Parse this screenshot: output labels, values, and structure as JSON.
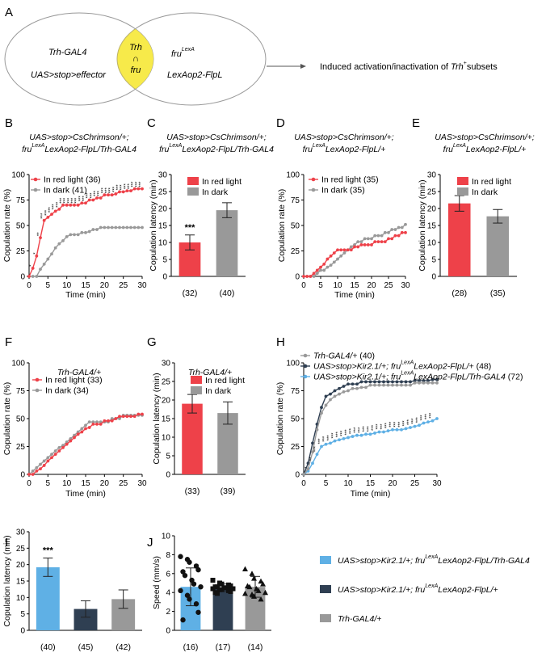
{
  "colors": {
    "red": "#ee4149",
    "grey": "#999999",
    "dark": "#2f3f52",
    "blue": "#5fb0e5",
    "venn_yellow": "#f7ea4a",
    "black": "#222222"
  },
  "panelA": {
    "label": "A",
    "left_l1": "Trh-GAL4",
    "left_l2": "UAS>stop>effector",
    "mid_top": "Trh",
    "mid_sym": "∩",
    "mid_bot": "fru",
    "right_base": "fru",
    "right_sup": "LexA",
    "right_l2": "LexAop2-FlpL",
    "arrow_text_pre": "Induced activation/inactivation of ",
    "arrow_text_gene": "Trh",
    "arrow_text_sup": "+",
    "arrow_text_post": "subsets"
  },
  "chart_data": [
    {
      "id": "B",
      "type": "line",
      "label": "B",
      "title1": "UAS>stop>CsChrimson/+;",
      "title2_pre": "fru",
      "title2_sup": "LexA",
      "title2_post": "LexAop2-FlpL/Trh-GAL4",
      "xlabel": "Time (min)",
      "ylabel": "Copulation rate (%)",
      "xlim": [
        0,
        30
      ],
      "ylim": [
        0,
        100
      ],
      "xticks": [
        0,
        5,
        10,
        15,
        20,
        25,
        30
      ],
      "yticks": [
        0,
        25,
        50,
        75,
        100
      ],
      "x": [
        0,
        1,
        2,
        3,
        4,
        5,
        6,
        7,
        8,
        9,
        10,
        11,
        12,
        13,
        14,
        15,
        16,
        17,
        18,
        19,
        20,
        21,
        22,
        23,
        24,
        25,
        26,
        27,
        28,
        29,
        30
      ],
      "series": [
        {
          "name": "In red light",
          "n": "(36)",
          "color": "red",
          "values": [
            0,
            8,
            20,
            38,
            55,
            58,
            61,
            64,
            66,
            70,
            70,
            70,
            70,
            70,
            72,
            72,
            75,
            75,
            77,
            77,
            80,
            80,
            80,
            81,
            83,
            83,
            84,
            84,
            86,
            86,
            86
          ]
        },
        {
          "name": "In dark",
          "n": "(41)",
          "color": "grey",
          "values": [
            0,
            0,
            0,
            7,
            12,
            17,
            22,
            28,
            32,
            35,
            39,
            41,
            41,
            41,
            43,
            43,
            44,
            46,
            46,
            48,
            48,
            48,
            48,
            48,
            48,
            48,
            48,
            48,
            48,
            48,
            48
          ]
        }
      ],
      "sig_marks": [
        "*",
        "*",
        "**",
        "***",
        "***",
        "***",
        "***",
        "***",
        "***",
        "***",
        "***",
        "***",
        "***",
        "***",
        "***",
        "***",
        "***",
        "***",
        "***",
        "***",
        "***",
        "***",
        "***",
        "***",
        "***",
        "***",
        "***",
        "***",
        "***",
        "***"
      ]
    },
    {
      "id": "C",
      "type": "bar",
      "label": "C",
      "title1": "UAS>stop>CsChrimson/+;",
      "title2_pre": "fru",
      "title2_sup": "LexA",
      "title2_post": "LexAop2-FlpL/Trh-GAL4",
      "ylabel": "Copulation latency (min)",
      "ylim": [
        0,
        30
      ],
      "yticks": [
        0,
        5,
        10,
        15,
        20,
        25,
        30
      ],
      "legend": [
        "In red light",
        "In dark"
      ],
      "categories": [
        "In red light",
        "In dark"
      ],
      "values": [
        10,
        19.5
      ],
      "errors": [
        2.2,
        2.2
      ],
      "colors": [
        "red",
        "grey"
      ],
      "n_labels": [
        "(32)",
        "(40)"
      ],
      "annotations": [
        "***",
        ""
      ]
    },
    {
      "id": "D",
      "type": "line",
      "label": "D",
      "title1": "UAS>stop>CsChrimson/+;",
      "title2_pre": "fru",
      "title2_sup": "LexA",
      "title2_post": "LexAop2-FlpL/+",
      "xlabel": "Time (min)",
      "ylabel": "Copulation rate (%)",
      "xlim": [
        0,
        30
      ],
      "ylim": [
        0,
        100
      ],
      "xticks": [
        0,
        5,
        10,
        15,
        20,
        25,
        30
      ],
      "yticks": [
        0,
        25,
        50,
        75,
        100
      ],
      "x": [
        0,
        1,
        2,
        3,
        4,
        5,
        6,
        7,
        8,
        9,
        10,
        11,
        12,
        13,
        14,
        15,
        16,
        17,
        18,
        19,
        20,
        21,
        22,
        23,
        24,
        25,
        26,
        27,
        28,
        29,
        30
      ],
      "series": [
        {
          "name": "In red light",
          "n": "(35)",
          "color": "red",
          "values": [
            0,
            0,
            0,
            3,
            6,
            9,
            12,
            17,
            20,
            23,
            26,
            26,
            26,
            26,
            26,
            29,
            29,
            31,
            31,
            31,
            31,
            34,
            34,
            34,
            34,
            37,
            37,
            40,
            40,
            43,
            43
          ]
        },
        {
          "name": "In dark",
          "n": "(35)",
          "color": "grey",
          "values": [
            0,
            0,
            0,
            0,
            3,
            6,
            6,
            9,
            11,
            14,
            17,
            20,
            23,
            26,
            29,
            31,
            34,
            34,
            37,
            37,
            37,
            40,
            40,
            40,
            43,
            43,
            46,
            46,
            48,
            48,
            51
          ]
        }
      ],
      "sig_marks": []
    },
    {
      "id": "E",
      "type": "bar",
      "label": "E",
      "title1": "UAS>stop>CsChrimson/+;",
      "title2_pre": "fru",
      "title2_sup": "LexA",
      "title2_post": "LexAop2-FlpL/+",
      "ylabel": "Copulation latency (min)",
      "ylim": [
        0,
        30
      ],
      "yticks": [
        0,
        5,
        10,
        15,
        20,
        25,
        30
      ],
      "legend": [
        "In red light",
        "In dark"
      ],
      "categories": [
        "In red light",
        "In dark"
      ],
      "values": [
        21.5,
        17.7
      ],
      "errors": [
        2.3,
        2.0
      ],
      "colors": [
        "red",
        "grey"
      ],
      "n_labels": [
        "(28)",
        "(35)"
      ],
      "annotations": [
        "",
        ""
      ]
    },
    {
      "id": "F",
      "type": "line",
      "label": "F",
      "title1": "Trh-GAL4/+",
      "xlabel": "Time (min)",
      "ylabel": "Copulation rate (%)",
      "xlim": [
        0,
        30
      ],
      "ylim": [
        0,
        100
      ],
      "xticks": [
        0,
        5,
        10,
        15,
        20,
        25,
        30
      ],
      "yticks": [
        0,
        25,
        50,
        75,
        100
      ],
      "x": [
        0,
        1,
        2,
        3,
        4,
        5,
        6,
        7,
        8,
        9,
        10,
        11,
        12,
        13,
        14,
        15,
        16,
        17,
        18,
        19,
        20,
        21,
        22,
        23,
        24,
        25,
        26,
        27,
        28,
        29,
        30
      ],
      "series": [
        {
          "name": "In red light",
          "n": "(33)",
          "color": "red",
          "values": [
            0,
            0,
            3,
            5,
            8,
            12,
            15,
            18,
            21,
            24,
            27,
            30,
            33,
            36,
            38,
            41,
            42,
            45,
            45,
            45,
            48,
            48,
            48,
            50,
            52,
            52,
            52,
            52,
            52,
            54,
            54
          ]
        },
        {
          "name": "In dark",
          "n": "(34)",
          "color": "grey",
          "values": [
            0,
            3,
            6,
            9,
            12,
            15,
            18,
            21,
            24,
            26,
            29,
            32,
            35,
            38,
            41,
            44,
            47,
            47,
            47,
            47,
            47,
            47,
            50,
            50,
            50,
            53,
            53,
            53,
            53,
            53,
            53
          ]
        }
      ],
      "sig_marks": []
    },
    {
      "id": "G",
      "type": "bar",
      "label": "G",
      "title1": "Trh-GAL4/+",
      "ylabel": "Copulation latency (min)",
      "ylim": [
        0,
        30
      ],
      "yticks": [
        0,
        5,
        10,
        15,
        20,
        25,
        30
      ],
      "legend": [
        "In red light",
        "In dark"
      ],
      "categories": [
        "In red light",
        "In dark"
      ],
      "values": [
        19,
        16.5
      ],
      "errors": [
        2.5,
        3.0
      ],
      "colors": [
        "red",
        "grey"
      ],
      "n_labels": [
        "(33)",
        "(39)"
      ],
      "annotations": [
        "",
        ""
      ]
    },
    {
      "id": "H",
      "type": "line",
      "label": "H",
      "xlabel": "Time (min)",
      "ylabel": "Copulation rate (%)",
      "xlim": [
        0,
        30
      ],
      "ylim": [
        0,
        100
      ],
      "xticks": [
        0,
        5,
        10,
        15,
        20,
        25,
        30
      ],
      "yticks": [
        0,
        25,
        50,
        75,
        100
      ],
      "x": [
        0,
        1,
        2,
        3,
        4,
        5,
        6,
        7,
        8,
        9,
        10,
        11,
        12,
        13,
        14,
        15,
        16,
        17,
        18,
        19,
        20,
        21,
        22,
        23,
        24,
        25,
        26,
        27,
        28,
        29,
        30
      ],
      "series": [
        {
          "name": "Trh-GAL4/+",
          "n": "(40)",
          "color": "grey",
          "values": [
            0,
            5,
            20,
            40,
            55,
            62,
            67,
            70,
            72,
            74,
            75,
            77,
            77,
            78,
            78,
            80,
            80,
            80,
            80,
            80,
            80,
            80,
            80,
            80,
            80,
            82,
            82,
            82,
            82,
            82,
            82
          ]
        },
        {
          "name": "UAS>stop>Kir2.1/+; fru^LexA LexAop2-FlpL/+",
          "n": "(48)",
          "color": "dark",
          "values": [
            0,
            10,
            28,
            45,
            60,
            70,
            72,
            75,
            77,
            79,
            81,
            81,
            81,
            83,
            83,
            83,
            83,
            83,
            83,
            83,
            83,
            83,
            83,
            83,
            83,
            84,
            84,
            84,
            84,
            85,
            85
          ]
        },
        {
          "name": "UAS>stop>Kir2.1/+; fru^LexA LexAop2-FlpL/Trh-GAL4",
          "n": "(72)",
          "color": "blue",
          "values": [
            0,
            3,
            10,
            18,
            25,
            27,
            28,
            30,
            31,
            32,
            33,
            34,
            35,
            35,
            36,
            36,
            37,
            38,
            38,
            39,
            40,
            40,
            40,
            41,
            42,
            43,
            44,
            46,
            47,
            48,
            50
          ]
        }
      ],
      "sig_marks": [
        "*",
        "**",
        "***",
        "***",
        "***",
        "***",
        "***",
        "***",
        "***",
        "***",
        "***",
        "***",
        "***",
        "***",
        "***",
        "***",
        "***",
        "***",
        "***",
        "***",
        "***",
        "***",
        "***",
        "***",
        "***",
        "***",
        "***",
        "***",
        "***"
      ]
    },
    {
      "id": "I",
      "type": "bar",
      "label": "I",
      "ylabel": "Copulation latency (min)",
      "ylim": [
        0,
        30
      ],
      "yticks": [
        0,
        5,
        10,
        15,
        20,
        25,
        30
      ],
      "categories": [
        "UAS>stop>Kir2.1/+; fru^LexA LexAop2-FlpL/Trh-GAL4",
        "UAS>stop>Kir2.1/+; fru^LexA LexAop2-FlpL/+",
        "Trh-GAL4/+"
      ],
      "values": [
        19.2,
        6.5,
        9.5
      ],
      "errors": [
        2.8,
        2.5,
        2.8
      ],
      "colors": [
        "blue",
        "dark",
        "grey"
      ],
      "n_labels": [
        "(40)",
        "(45)",
        "(42)"
      ],
      "annotations": [
        "***",
        "",
        ""
      ]
    },
    {
      "id": "J",
      "type": "bar",
      "label": "J",
      "ylabel": "Speed (mm/s)",
      "ylim": [
        0,
        10
      ],
      "yticks": [
        0,
        2,
        4,
        6,
        8,
        10
      ],
      "categories": [
        "UAS>stop>Kir2.1/+; fru^LexA LexAop2-FlpL/Trh-GAL4",
        "UAS>stop>Kir2.1/+; fru^LexA LexAop2-FlpL/+",
        "Trh-GAL4/+"
      ],
      "values": [
        4.6,
        4.5,
        4.6
      ],
      "errors": [
        2.0,
        0.4,
        1.1
      ],
      "colors": [
        "blue",
        "dark",
        "grey"
      ],
      "n_labels": [
        "(16)",
        "(17)",
        "(14)"
      ],
      "annotations": [
        "",
        "",
        ""
      ],
      "points": [
        {
          "marker": "circle",
          "values": [
            7.8,
            7.5,
            7.2,
            6.8,
            6.4,
            6.2,
            5.8,
            5.3,
            4.9,
            4.6,
            4.2,
            3.7,
            3.3,
            2.8,
            1.9,
            1.1
          ]
        },
        {
          "marker": "square",
          "values": [
            5.3,
            5.0,
            4.9,
            4.8,
            4.7,
            4.6,
            4.6,
            4.5,
            4.5,
            4.4,
            4.4,
            4.3,
            4.3,
            4.2,
            4.1,
            4.0,
            3.9
          ]
        },
        {
          "marker": "triangle",
          "values": [
            6.5,
            6.0,
            5.5,
            5.2,
            4.9,
            4.7,
            4.6,
            4.4,
            4.2,
            4.0,
            3.9,
            3.8,
            3.6,
            3.3
          ]
        }
      ]
    }
  ],
  "legend_bottom": [
    {
      "color": "blue",
      "pre": "UAS>stop>Kir2.1/+; fru",
      "sup": "LexA",
      "post": "LexAop2-FlpL/Trh-GAL4"
    },
    {
      "color": "dark",
      "pre": "UAS>stop>Kir2.1/+; fru",
      "sup": "LexA",
      "post": "LexAop2-FlpL/+"
    },
    {
      "color": "grey",
      "pre": "Trh-GAL4/+",
      "sup": "",
      "post": ""
    }
  ]
}
